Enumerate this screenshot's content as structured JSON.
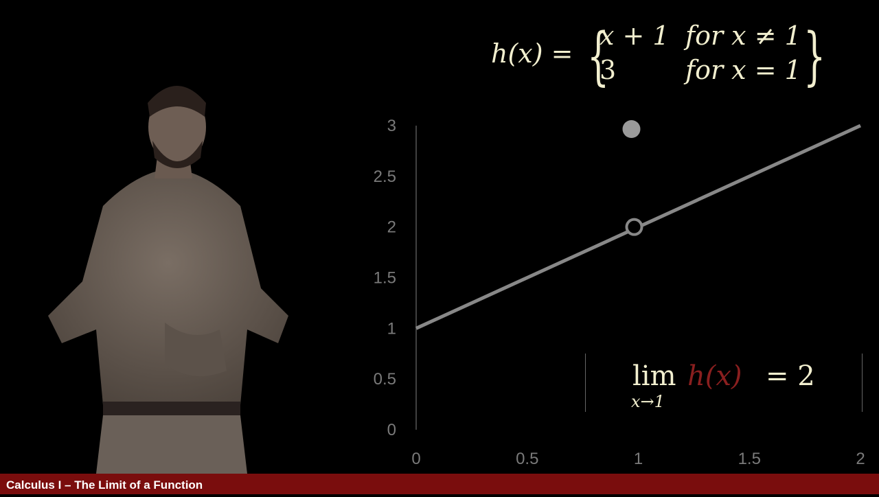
{
  "formula": {
    "lhs": "h(x) =",
    "case1_expr": "x + 1",
    "case1_cond": "for x ≠ 1",
    "case2_expr": "3",
    "case2_cond": "for x = 1"
  },
  "limit": {
    "lim": "lim",
    "sub": "x→1",
    "fn": "h(x)",
    "eq": "= 2"
  },
  "footer": {
    "title": "Calculus I – The Limit of a Function"
  },
  "colors": {
    "accent": "#7a0d0d",
    "formula_text": "#f2efcf",
    "function_red": "#8a1f1f",
    "line_gray": "#888888"
  },
  "chart_data": {
    "type": "line",
    "title": "",
    "xlabel": "",
    "ylabel": "",
    "xlim": [
      0,
      2
    ],
    "ylim": [
      0,
      3
    ],
    "x_ticks": [
      "0",
      "0.5",
      "1",
      "1.5",
      "2"
    ],
    "y_ticks": [
      "0",
      "0.5",
      "1",
      "1.5",
      "2",
      "2.5",
      "3"
    ],
    "series": [
      {
        "x": [
          0,
          2
        ],
        "y": [
          1,
          3
        ]
      }
    ],
    "open_point": {
      "x": 1,
      "y": 2
    },
    "filled_point": {
      "x": 1,
      "y": 3
    },
    "grid": false
  }
}
